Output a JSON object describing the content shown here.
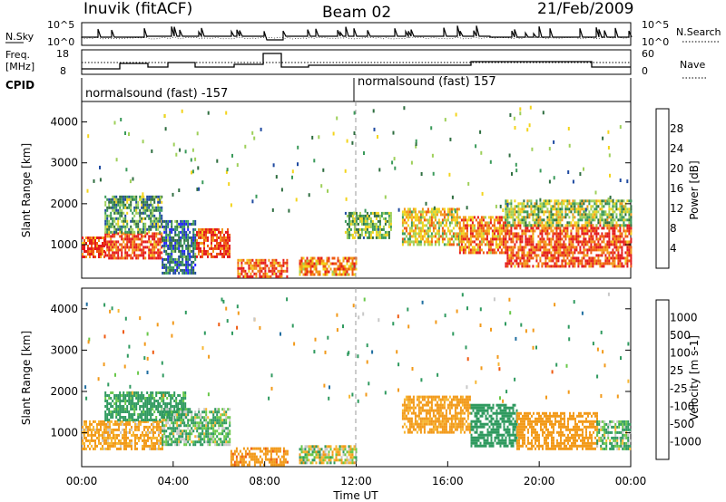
{
  "header": {
    "station": "Inuvik (fitACF)",
    "beam": "Beam 02",
    "date": "21/Feb/2009"
  },
  "sky_panel": {
    "left_label": "N.Sky",
    "right_label": "N.Search",
    "left_ticks": [
      "10^5",
      "10^0"
    ],
    "right_ticks": [
      "10^5",
      "10^0"
    ]
  },
  "freq_panel": {
    "left_label_line1": "Freq.",
    "left_label_line2": "[MHz]",
    "right_label": "Nave",
    "left_ticks": [
      "18",
      "8"
    ],
    "right_ticks": [
      "60",
      "0"
    ]
  },
  "cpid": {
    "label": "CPID",
    "left_mode": "normalsound (fast) -157",
    "right_mode": "normalsound (fast) 157"
  },
  "colors": {
    "power_scale": [
      "#1f1fff",
      "#1f4aa0",
      "#2f6e40",
      "#3a9a5a",
      "#9ed05a",
      "#f3d41c",
      "#f29a1a",
      "#ef5a10",
      "#e41a1c"
    ],
    "velocity_scale": [
      "#e41a1c",
      "#ef5a10",
      "#f29a1a",
      "#f7b733",
      "#c8c8c8",
      "#69c84a",
      "#2f9a5f",
      "#1f6ea0",
      "#1f3fc0"
    ]
  },
  "chart_data": [
    {
      "type": "heatmap",
      "panel": "power",
      "ylabel": "Slant Range [km]",
      "yticks": [
        "4000",
        "3000",
        "2000",
        "1000"
      ],
      "ylim": [
        180,
        4500
      ],
      "colorbar_label": "Power [dB]",
      "colorbar_ticks": [
        "28",
        "24",
        "20",
        "16",
        "12",
        "8",
        "4"
      ],
      "colorbar_range": [
        0,
        32
      ],
      "x_units": "hours UT",
      "xlim": [
        0,
        24
      ],
      "echo_bands": [
        {
          "t_start": 0.0,
          "t_end": 1.0,
          "range_min": 700,
          "range_max": 1200,
          "level": 28
        },
        {
          "t_start": 1.0,
          "t_end": 3.5,
          "range_min": 650,
          "range_max": 1300,
          "level": 28
        },
        {
          "t_start": 1.0,
          "t_end": 3.5,
          "range_min": 1300,
          "range_max": 2200,
          "level": 12
        },
        {
          "t_start": 3.5,
          "t_end": 5.0,
          "range_min": 300,
          "range_max": 1600,
          "level": 8
        },
        {
          "t_start": 5.0,
          "t_end": 6.5,
          "range_min": 700,
          "range_max": 1400,
          "level": 28
        },
        {
          "t_start": 6.8,
          "t_end": 9.0,
          "range_min": 250,
          "range_max": 650,
          "level": 26
        },
        {
          "t_start": 9.5,
          "t_end": 12.0,
          "range_min": 250,
          "range_max": 700,
          "level": 24
        },
        {
          "t_start": 11.5,
          "t_end": 13.5,
          "range_min": 1200,
          "range_max": 1800,
          "level": 14
        },
        {
          "t_start": 14.0,
          "t_end": 16.5,
          "range_min": 1000,
          "range_max": 1900,
          "level": 20
        },
        {
          "t_start": 16.5,
          "t_end": 18.5,
          "range_min": 800,
          "range_max": 1700,
          "level": 24
        },
        {
          "t_start": 18.5,
          "t_end": 24.0,
          "range_min": 500,
          "range_max": 1500,
          "level": 28
        },
        {
          "t_start": 18.5,
          "t_end": 24.0,
          "range_min": 1500,
          "range_max": 2100,
          "level": 16
        }
      ]
    },
    {
      "type": "heatmap",
      "panel": "velocity",
      "ylabel": "Slant Range [km]",
      "yticks": [
        "4000",
        "3000",
        "2000",
        "1000"
      ],
      "ylim": [
        180,
        4500
      ],
      "xlabel": "Time UT",
      "xticks": [
        "00:00",
        "04:00",
        "08:00",
        "12:00",
        "16:00",
        "20:00",
        "00:00"
      ],
      "xlim": [
        0,
        24
      ],
      "colorbar_label": "Velocity [m s-1]",
      "colorbar_ticks": [
        "1000",
        "500",
        "100",
        "25",
        "-25",
        "-100",
        "-500",
        "-1000"
      ],
      "echo_bands": [
        {
          "t_start": 0.0,
          "t_end": 3.5,
          "range_min": 600,
          "range_max": 1300,
          "level": -150
        },
        {
          "t_start": 1.0,
          "t_end": 4.5,
          "range_min": 1300,
          "range_max": 2000,
          "level": 200
        },
        {
          "t_start": 3.5,
          "t_end": 6.5,
          "range_min": 700,
          "range_max": 1600,
          "level": 100
        },
        {
          "t_start": 6.5,
          "t_end": 9.0,
          "range_min": 250,
          "range_max": 650,
          "level": -400
        },
        {
          "t_start": 9.5,
          "t_end": 12.0,
          "range_min": 250,
          "range_max": 700,
          "level": 0
        },
        {
          "t_start": 14.0,
          "t_end": 17.0,
          "range_min": 1000,
          "range_max": 1900,
          "level": -200
        },
        {
          "t_start": 17.0,
          "t_end": 19.0,
          "range_min": 700,
          "range_max": 1700,
          "level": 300
        },
        {
          "t_start": 19.0,
          "t_end": 22.5,
          "range_min": 600,
          "range_max": 1500,
          "level": -250
        },
        {
          "t_start": 22.5,
          "t_end": 24.0,
          "range_min": 600,
          "range_max": 1300,
          "level": 100
        }
      ]
    }
  ]
}
